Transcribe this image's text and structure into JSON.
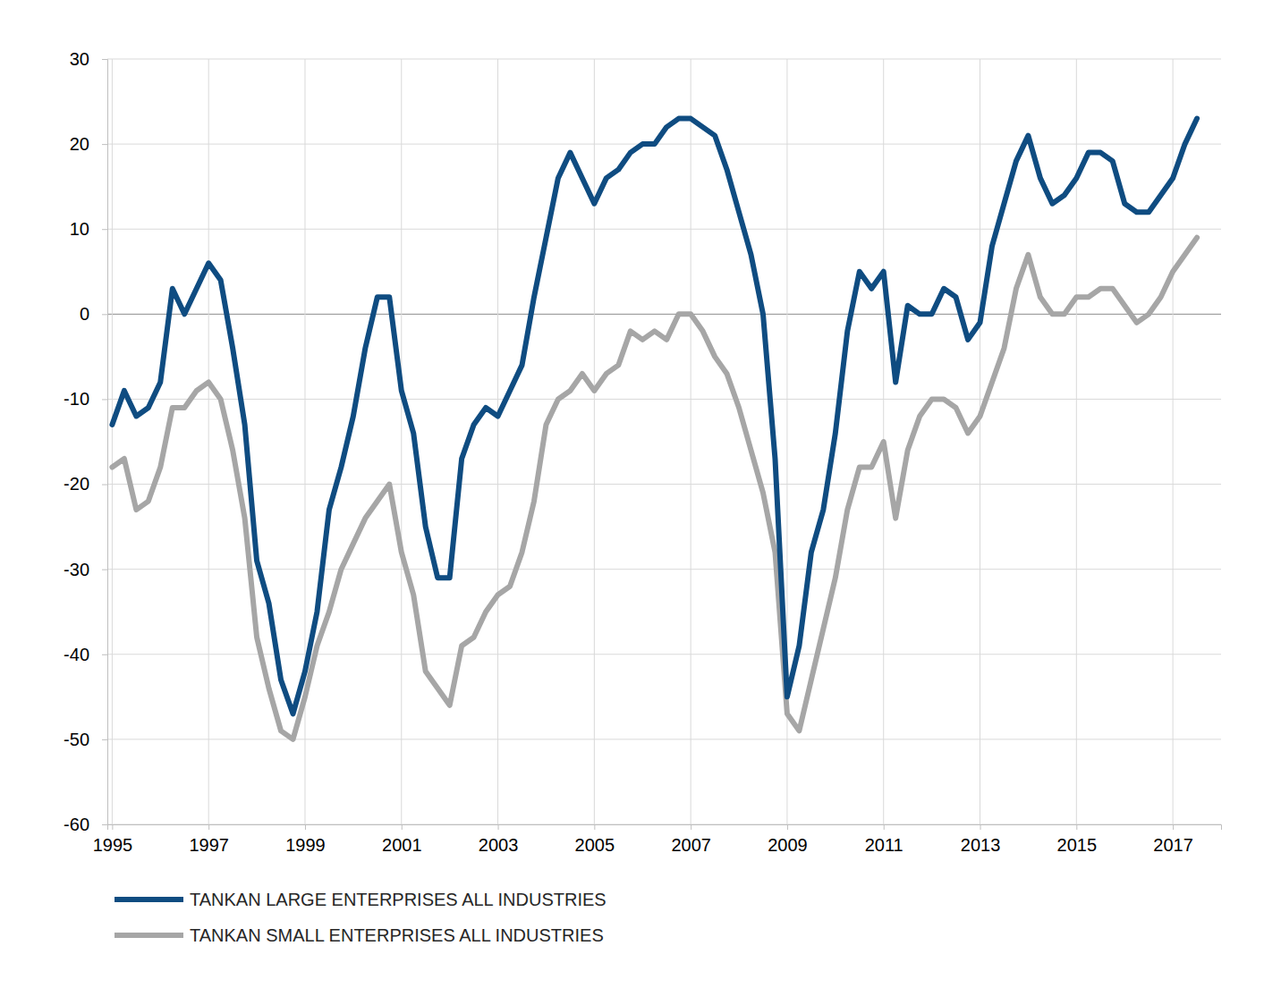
{
  "chart_data": {
    "type": "line",
    "x": [
      1995,
      1995.25,
      1995.5,
      1995.75,
      1996,
      1996.25,
      1996.5,
      1996.75,
      1997,
      1997.25,
      1997.5,
      1997.75,
      1998,
      1998.25,
      1998.5,
      1998.75,
      1999,
      1999.25,
      1999.5,
      1999.75,
      2000,
      2000.25,
      2000.5,
      2000.75,
      2001,
      2001.25,
      2001.5,
      2001.75,
      2002,
      2002.25,
      2002.5,
      2002.75,
      2003,
      2003.25,
      2003.5,
      2003.75,
      2004,
      2004.25,
      2004.5,
      2004.75,
      2005,
      2005.25,
      2005.5,
      2005.75,
      2006,
      2006.25,
      2006.5,
      2006.75,
      2007,
      2007.25,
      2007.5,
      2007.75,
      2008,
      2008.25,
      2008.5,
      2008.75,
      2009,
      2009.25,
      2009.5,
      2009.75,
      2010,
      2010.25,
      2010.5,
      2010.75,
      2011,
      2011.25,
      2011.5,
      2011.75,
      2012,
      2012.25,
      2012.5,
      2012.75,
      2013,
      2013.25,
      2013.5,
      2013.75,
      2014,
      2014.25,
      2014.5,
      2014.75,
      2015,
      2015.25,
      2015.5,
      2015.75,
      2016,
      2016.25,
      2016.5,
      2016.75,
      2017,
      2017.25,
      2017.5
    ],
    "series": [
      {
        "name": "TANKAN LARGE ENTERPRISES ALL INDUSTRIES",
        "color": "#0f4c81",
        "values": [
          -13,
          -9,
          -12,
          -11,
          -8,
          3,
          0,
          3,
          6,
          4,
          -4,
          -13,
          -29,
          -34,
          -43,
          -47,
          -42,
          -35,
          -23,
          -18,
          -12,
          -4,
          2,
          2,
          -9,
          -14,
          -25,
          -31,
          -31,
          -17,
          -13,
          -11,
          -12,
          -9,
          -6,
          2,
          9,
          16,
          19,
          16,
          13,
          16,
          17,
          19,
          20,
          20,
          22,
          23,
          23,
          22,
          21,
          17,
          12,
          7,
          0,
          -17,
          -45,
          -39,
          -28,
          -23,
          -14,
          -2,
          5,
          3,
          5,
          -8,
          1,
          0,
          0,
          3,
          2,
          -3,
          -1,
          8,
          13,
          18,
          21,
          16,
          13,
          14,
          16,
          19,
          19,
          18,
          13,
          12,
          12,
          14,
          16,
          20,
          23
        ]
      },
      {
        "name": "TANKAN SMALL ENTERPRISES ALL INDUSTRIES",
        "color": "#a6a6a6",
        "values": [
          -18,
          -17,
          -23,
          -22,
          -18,
          -11,
          -11,
          -9,
          -8,
          -10,
          -16,
          -24,
          -38,
          -44,
          -49,
          -50,
          -45,
          -39,
          -35,
          -30,
          -27,
          -24,
          -22,
          -20,
          -28,
          -33,
          -42,
          -44,
          -46,
          -39,
          -38,
          -35,
          -33,
          -32,
          -28,
          -22,
          -13,
          -10,
          -9,
          -7,
          -9,
          -7,
          -6,
          -2,
          -3,
          -2,
          -3,
          0,
          0,
          -2,
          -5,
          -7,
          -11,
          -16,
          -21,
          -28,
          -47,
          -49,
          -43,
          -37,
          -31,
          -23,
          -18,
          -18,
          -15,
          -24,
          -16,
          -12,
          -10,
          -10,
          -11,
          -14,
          -12,
          -8,
          -4,
          3,
          7,
          2,
          0,
          0,
          2,
          2,
          3,
          3,
          1,
          -1,
          0,
          2,
          5,
          7,
          9
        ]
      }
    ],
    "xlim": [
      1994.9,
      2018.0
    ],
    "xticks": [
      1995,
      1997,
      1999,
      2001,
      2003,
      2005,
      2007,
      2009,
      2011,
      2013,
      2015,
      2017
    ],
    "ylim": [
      -60,
      30
    ],
    "yticks": [
      -60,
      -50,
      -40,
      -30,
      -20,
      -10,
      0,
      10,
      20,
      30
    ],
    "grid": true,
    "legend": "bottom-left"
  }
}
